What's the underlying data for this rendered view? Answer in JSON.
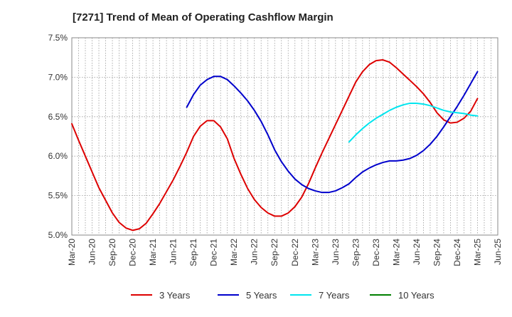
{
  "chart_data": {
    "type": "line",
    "title": "[7271]  Trend of Mean of Operating Cashflow Margin",
    "xlabel": "",
    "ylabel": "",
    "ylim": [
      5.0,
      7.5
    ],
    "y_ticks": [
      "5.0%",
      "5.5%",
      "6.0%",
      "6.5%",
      "7.0%",
      "7.5%"
    ],
    "y_tick_values": [
      5.0,
      5.5,
      6.0,
      6.5,
      7.0,
      7.5
    ],
    "x_ticks": [
      "Mar-20",
      "Jun-20",
      "Sep-20",
      "Dec-20",
      "Mar-21",
      "Jun-21",
      "Sep-21",
      "Dec-21",
      "Mar-22",
      "Jun-22",
      "Sep-22",
      "Dec-22",
      "Mar-23",
      "Jun-23",
      "Sep-23",
      "Dec-23",
      "Mar-24",
      "Jun-24",
      "Sep-24",
      "Dec-24",
      "Mar-25",
      "Jun-25"
    ],
    "grid": true,
    "legend_position": "bottom",
    "series": [
      {
        "name": "3 Years",
        "color": "#dd0000",
        "points": [
          [
            "Mar-20",
            6.41
          ],
          [
            "Apr-20",
            6.2
          ],
          [
            "May-20",
            6.0
          ],
          [
            "Jun-20",
            5.8
          ],
          [
            "Jul-20",
            5.6
          ],
          [
            "Aug-20",
            5.44
          ],
          [
            "Sep-20",
            5.28
          ],
          [
            "Oct-20",
            5.16
          ],
          [
            "Nov-20",
            5.09
          ],
          [
            "Dec-20",
            5.06
          ],
          [
            "Jan-21",
            5.08
          ],
          [
            "Feb-21",
            5.15
          ],
          [
            "Mar-21",
            5.27
          ],
          [
            "Apr-21",
            5.4
          ],
          [
            "May-21",
            5.55
          ],
          [
            "Jun-21",
            5.7
          ],
          [
            "Jul-21",
            5.87
          ],
          [
            "Aug-21",
            6.05
          ],
          [
            "Sep-21",
            6.25
          ],
          [
            "Oct-21",
            6.38
          ],
          [
            "Nov-21",
            6.45
          ],
          [
            "Dec-21",
            6.45
          ],
          [
            "Jan-22",
            6.37
          ],
          [
            "Feb-22",
            6.22
          ],
          [
            "Mar-22",
            5.97
          ],
          [
            "Apr-22",
            5.77
          ],
          [
            "May-22",
            5.59
          ],
          [
            "Jun-22",
            5.45
          ],
          [
            "Jul-22",
            5.35
          ],
          [
            "Aug-22",
            5.28
          ],
          [
            "Sep-22",
            5.24
          ],
          [
            "Oct-22",
            5.24
          ],
          [
            "Nov-22",
            5.28
          ],
          [
            "Dec-22",
            5.36
          ],
          [
            "Jan-23",
            5.48
          ],
          [
            "Feb-23",
            5.65
          ],
          [
            "Mar-23",
            5.85
          ],
          [
            "Apr-23",
            6.04
          ],
          [
            "May-23",
            6.22
          ],
          [
            "Jun-23",
            6.4
          ],
          [
            "Jul-23",
            6.58
          ],
          [
            "Aug-23",
            6.76
          ],
          [
            "Sep-23",
            6.94
          ],
          [
            "Oct-23",
            7.07
          ],
          [
            "Nov-23",
            7.16
          ],
          [
            "Dec-23",
            7.21
          ],
          [
            "Jan-24",
            7.22
          ],
          [
            "Feb-24",
            7.19
          ],
          [
            "Mar-24",
            7.12
          ],
          [
            "Apr-24",
            7.04
          ],
          [
            "May-24",
            6.96
          ],
          [
            "Jun-24",
            6.88
          ],
          [
            "Jul-24",
            6.79
          ],
          [
            "Aug-24",
            6.68
          ],
          [
            "Sep-24",
            6.55
          ],
          [
            "Oct-24",
            6.46
          ],
          [
            "Nov-24",
            6.42
          ],
          [
            "Dec-24",
            6.43
          ],
          [
            "Jan-25",
            6.48
          ],
          [
            "Feb-25",
            6.57
          ],
          [
            "Mar-25",
            6.73
          ]
        ]
      },
      {
        "name": "5 Years",
        "color": "#0000cc",
        "points": [
          [
            "Aug-21",
            6.62
          ],
          [
            "Sep-21",
            6.78
          ],
          [
            "Oct-21",
            6.9
          ],
          [
            "Nov-21",
            6.97
          ],
          [
            "Dec-21",
            7.01
          ],
          [
            "Jan-22",
            7.01
          ],
          [
            "Feb-22",
            6.97
          ],
          [
            "Mar-22",
            6.89
          ],
          [
            "Apr-22",
            6.8
          ],
          [
            "May-22",
            6.7
          ],
          [
            "Jun-22",
            6.58
          ],
          [
            "Jul-22",
            6.44
          ],
          [
            "Aug-22",
            6.27
          ],
          [
            "Sep-22",
            6.08
          ],
          [
            "Oct-22",
            5.93
          ],
          [
            "Nov-22",
            5.81
          ],
          [
            "Dec-22",
            5.71
          ],
          [
            "Jan-23",
            5.64
          ],
          [
            "Feb-23",
            5.59
          ],
          [
            "Mar-23",
            5.56
          ],
          [
            "Apr-23",
            5.54
          ],
          [
            "May-23",
            5.54
          ],
          [
            "Jun-23",
            5.56
          ],
          [
            "Jul-23",
            5.6
          ],
          [
            "Aug-23",
            5.65
          ],
          [
            "Sep-23",
            5.73
          ],
          [
            "Oct-23",
            5.8
          ],
          [
            "Nov-23",
            5.85
          ],
          [
            "Dec-23",
            5.89
          ],
          [
            "Jan-24",
            5.92
          ],
          [
            "Feb-24",
            5.94
          ],
          [
            "Mar-24",
            5.94
          ],
          [
            "Apr-24",
            5.95
          ],
          [
            "May-24",
            5.97
          ],
          [
            "Jun-24",
            6.01
          ],
          [
            "Jul-24",
            6.07
          ],
          [
            "Aug-24",
            6.15
          ],
          [
            "Sep-24",
            6.25
          ],
          [
            "Oct-24",
            6.37
          ],
          [
            "Nov-24",
            6.5
          ],
          [
            "Dec-24",
            6.63
          ],
          [
            "Jan-25",
            6.77
          ],
          [
            "Feb-25",
            6.92
          ],
          [
            "Mar-25",
            7.07
          ]
        ]
      },
      {
        "name": "7 Years",
        "color": "#00e5ee",
        "points": [
          [
            "Aug-23",
            6.18
          ],
          [
            "Sep-23",
            6.27
          ],
          [
            "Oct-23",
            6.35
          ],
          [
            "Nov-23",
            6.42
          ],
          [
            "Dec-23",
            6.48
          ],
          [
            "Jan-24",
            6.53
          ],
          [
            "Feb-24",
            6.58
          ],
          [
            "Mar-24",
            6.62
          ],
          [
            "Apr-24",
            6.65
          ],
          [
            "May-24",
            6.67
          ],
          [
            "Jun-24",
            6.67
          ],
          [
            "Jul-24",
            6.66
          ],
          [
            "Aug-24",
            6.64
          ],
          [
            "Sep-24",
            6.61
          ],
          [
            "Oct-24",
            6.58
          ],
          [
            "Nov-24",
            6.56
          ],
          [
            "Dec-24",
            6.55
          ],
          [
            "Jan-25",
            6.54
          ],
          [
            "Feb-25",
            6.52
          ],
          [
            "Mar-25",
            6.51
          ]
        ]
      },
      {
        "name": "10 Years",
        "color": "#008000",
        "points": []
      }
    ]
  }
}
